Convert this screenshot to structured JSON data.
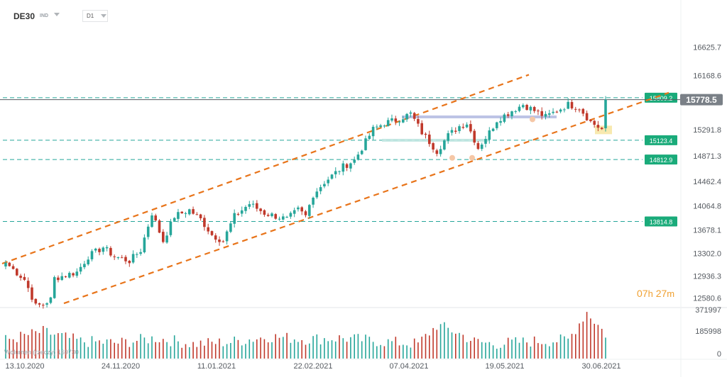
{
  "header": {
    "symbol": "DE30",
    "instrument_type": "IND",
    "timeframe": "D1"
  },
  "countdown": {
    "hours": "07",
    "hours_unit": "h",
    "minutes": "27",
    "minutes_unit": "m"
  },
  "volume_legend": "Wolumen (rzeczy) 169730",
  "colors": {
    "bull": "#26a69a",
    "bear": "#c0392b",
    "channel": "#e8741a",
    "level": "#26a69a",
    "label_bg": "#1aab7a",
    "price_tag": "#7a8087",
    "countdown": "#f0a030",
    "zone": "#b0b8e0"
  },
  "chart_data": {
    "type": "candlestick",
    "symbol": "DE30",
    "timeframe": "D1",
    "ylim": [
      12450,
      16950
    ],
    "y_ticks": [
      16625.7,
      16168.6,
      15291.8,
      14871.3,
      14462.4,
      14064.8,
      13678.1,
      13302.0,
      12936.3,
      12580.6
    ],
    "x_ticks": [
      "13.10.2020",
      "24.11.2020",
      "11.01.2021",
      "22.02.2021",
      "07.04.2021",
      "19.05.2021",
      "30.06.2021"
    ],
    "current_price": "15778.5",
    "levels": [
      {
        "label": "15809.2",
        "value": 15809.2
      },
      {
        "label": "15123.4",
        "value": 15123.4
      },
      {
        "label": "14812.9",
        "value": 14812.9
      },
      {
        "label": "13814.8",
        "value": 13814.8
      }
    ],
    "volume_ticks": [
      "371997",
      "185998",
      "0"
    ],
    "volume_max": 371997,
    "ohlc_anchors": [
      [
        0,
        13150
      ],
      [
        5,
        12880
      ],
      [
        7,
        12600
      ],
      [
        8,
        12450
      ],
      [
        10,
        12480
      ],
      [
        12,
        12560
      ],
      [
        13,
        12900
      ],
      [
        16,
        12950
      ],
      [
        19,
        13000
      ],
      [
        22,
        13250
      ],
      [
        26,
        13400
      ],
      [
        29,
        13250
      ],
      [
        33,
        13180
      ],
      [
        36,
        13350
      ],
      [
        39,
        13950
      ],
      [
        42,
        13500
      ],
      [
        45,
        13900
      ],
      [
        49,
        14000
      ],
      [
        52,
        13850
      ],
      [
        55,
        13600
      ],
      [
        58,
        13500
      ],
      [
        61,
        13900
      ],
      [
        65,
        14100
      ],
      [
        69,
        13950
      ],
      [
        72,
        13900
      ],
      [
        75,
        13850
      ],
      [
        78,
        14000
      ],
      [
        80,
        13900
      ],
      [
        82,
        14250
      ],
      [
        85,
        14450
      ],
      [
        88,
        14600
      ],
      [
        90,
        14700
      ],
      [
        93,
        14800
      ],
      [
        96,
        15100
      ],
      [
        98,
        15300
      ],
      [
        101,
        15400
      ],
      [
        104,
        15450
      ],
      [
        108,
        15550
      ],
      [
        111,
        15250
      ],
      [
        113,
        15100
      ],
      [
        115,
        14950
      ],
      [
        118,
        15200
      ],
      [
        121,
        15350
      ],
      [
        123,
        15400
      ],
      [
        126,
        15000
      ],
      [
        129,
        15250
      ],
      [
        131,
        15450
      ],
      [
        135,
        15600
      ],
      [
        138,
        15700
      ],
      [
        141,
        15600
      ],
      [
        144,
        15500
      ],
      [
        147,
        15600
      ],
      [
        150,
        15700
      ],
      [
        153,
        15650
      ],
      [
        156,
        15420
      ],
      [
        159,
        15300
      ],
      [
        160,
        15780
      ]
    ],
    "volume_anchors": [
      [
        0,
        0.38
      ],
      [
        10,
        0.55
      ],
      [
        20,
        0.35
      ],
      [
        30,
        0.32
      ],
      [
        40,
        0.42
      ],
      [
        50,
        0.3
      ],
      [
        60,
        0.34
      ],
      [
        70,
        0.45
      ],
      [
        80,
        0.4
      ],
      [
        90,
        0.42
      ],
      [
        100,
        0.35
      ],
      [
        110,
        0.3
      ],
      [
        115,
        0.68
      ],
      [
        120,
        0.55
      ],
      [
        125,
        0.35
      ],
      [
        130,
        0.3
      ],
      [
        140,
        0.35
      ],
      [
        150,
        0.38
      ],
      [
        155,
        0.96
      ],
      [
        160,
        0.5
      ]
    ]
  }
}
